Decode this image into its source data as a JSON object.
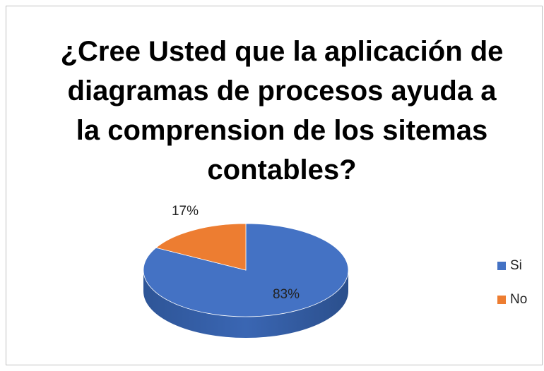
{
  "chart_data": {
    "type": "pie",
    "title": "¿Cree Usted que la aplicación de diagramas de procesos ayuda a la comprension de los sitemas contables?",
    "categories": [
      "Si",
      "No"
    ],
    "values": [
      83,
      17
    ],
    "value_labels": [
      "83%",
      "17%"
    ],
    "colors": [
      "#4472c4",
      "#ed7d31"
    ],
    "legend": "right"
  }
}
